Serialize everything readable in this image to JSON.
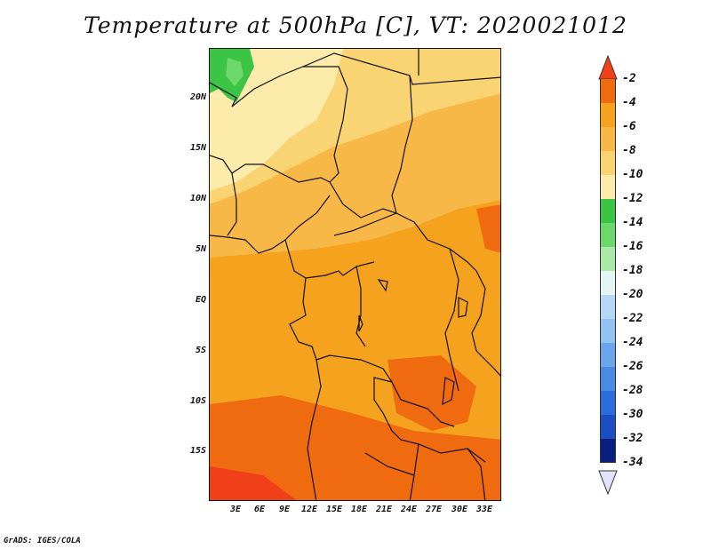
{
  "title": "Temperature at 500hPa [C], VT: 2020021012",
  "credit": "GrADS: IGES/COLA",
  "map": {
    "lat_labels": [
      "20N",
      "15N",
      "10N",
      "5N",
      "EQ",
      "5S",
      "10S",
      "15S"
    ],
    "lon_labels": [
      "3E",
      "6E",
      "9E",
      "12E",
      "15E",
      "18E",
      "21E",
      "24E",
      "27E",
      "30E",
      "33E"
    ],
    "colors": {
      "m2_to_m4": "#f06a10",
      "m4_to_m6": "#f5a21e",
      "m6_to_m8": "#f8b848",
      "m8_to_m10": "#fad472",
      "m10_to_m12": "#fdebac",
      "m12_to_m14": "#3cc444",
      "m14_to_m16": "#6cd86c",
      "border": "#111111"
    }
  },
  "colorbar": {
    "labels": [
      "-2",
      "-4",
      "-6",
      "-8",
      "-10",
      "-12",
      "-14",
      "-16",
      "-18",
      "-20",
      "-22",
      "-24",
      "-26",
      "-28",
      "-30",
      "-32",
      "-34"
    ],
    "colors": [
      "#f0401a",
      "#f06a10",
      "#f5a21e",
      "#f8b848",
      "#fad472",
      "#fdebac",
      "#3cc444",
      "#6cd86c",
      "#aae8a8",
      "#e4f6f4",
      "#b6d8f4",
      "#92c2f0",
      "#6ca6ea",
      "#4a8ae2",
      "#2a6cd8",
      "#1a4ec2",
      "#0a1e7e"
    ],
    "top_arrow_color": "#f0401a",
    "bottom_arrow_color": "#e2e2fa"
  }
}
